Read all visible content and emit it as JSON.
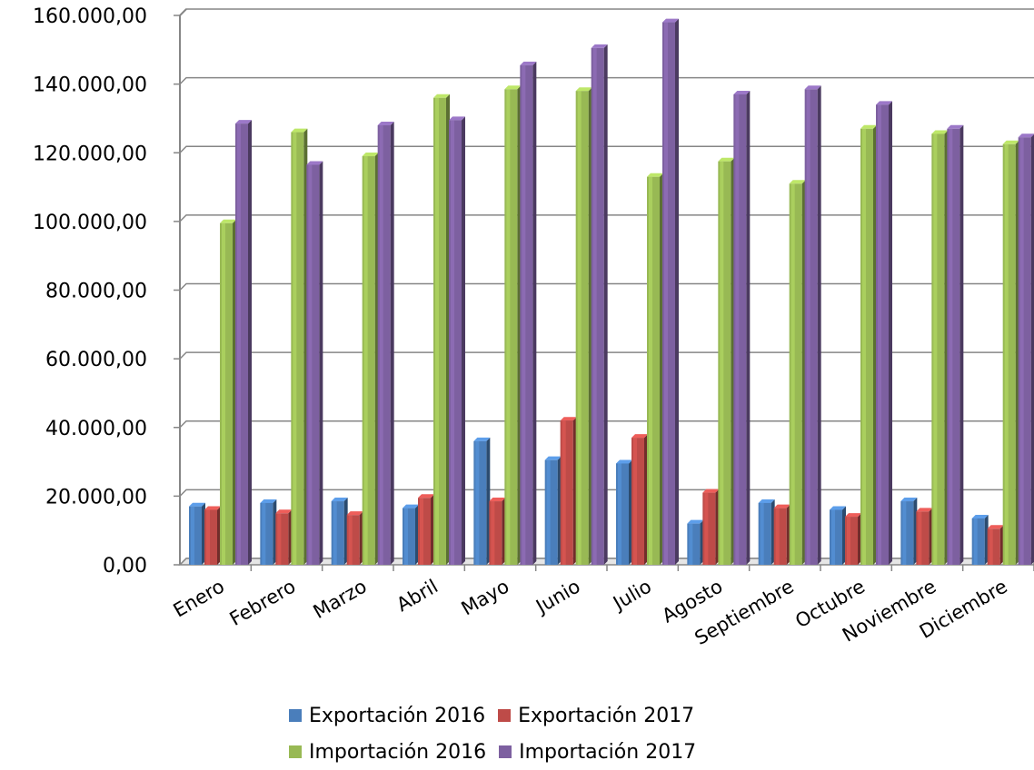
{
  "chart_data": {
    "type": "bar",
    "title": "",
    "xlabel": "",
    "ylabel": "",
    "ylim": [
      0,
      160000
    ],
    "y_tick_values": [
      0,
      20000,
      40000,
      60000,
      80000,
      100000,
      120000,
      140000,
      160000
    ],
    "y_tick_labels": [
      "0,00",
      "20.000,00",
      "40.000,00",
      "60.000,00",
      "80.000,00",
      "100.000,00",
      "120.000,00",
      "140.000,00",
      "160.000,00"
    ],
    "grid": true,
    "legend_position": "bottom",
    "categories": [
      "Enero",
      "Febrero",
      "Marzo",
      "Abril",
      "Mayo",
      "Junio",
      "Julio",
      "Agosto",
      "Septiembre",
      "Octubre",
      "Noviembre",
      "Diciembre"
    ],
    "series": [
      {
        "name": "Exportación 2016",
        "color": "#4a7ebb",
        "values": [
          17000,
          18000,
          18500,
          16500,
          36000,
          30500,
          29500,
          12000,
          18000,
          16000,
          18500,
          13500
        ]
      },
      {
        "name": "Exportación 2017",
        "color": "#be4b48",
        "values": [
          16000,
          15000,
          14500,
          19500,
          18500,
          42000,
          37000,
          21000,
          16500,
          14000,
          15500,
          10500
        ]
      },
      {
        "name": "Importación 2016",
        "color": "#98b954",
        "values": [
          99500,
          126000,
          119000,
          136000,
          138500,
          138000,
          113000,
          117500,
          111000,
          127000,
          125500,
          122500
        ]
      },
      {
        "name": "Importación 2017",
        "color": "#7d60a0",
        "values": [
          128500,
          116500,
          128000,
          129500,
          145500,
          150500,
          158000,
          137000,
          138500,
          134000,
          127000,
          124500
        ]
      }
    ]
  }
}
